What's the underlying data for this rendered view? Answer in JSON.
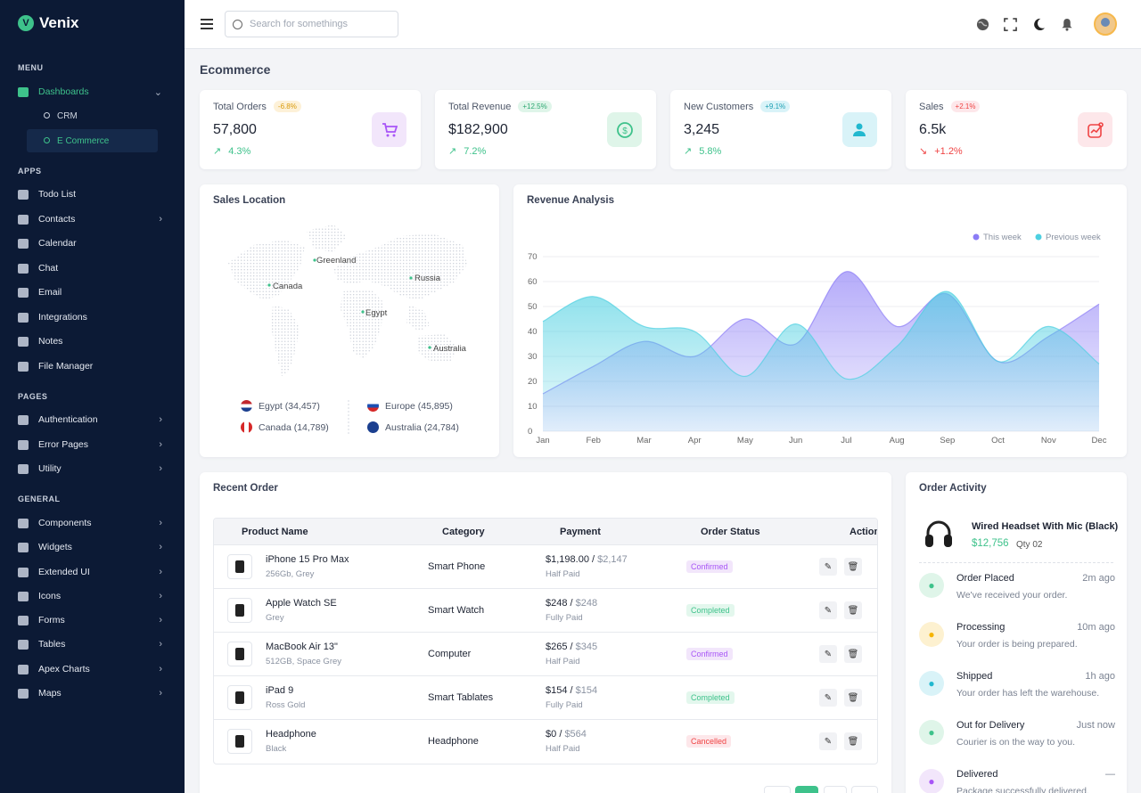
{
  "brand": {
    "name": "Venix",
    "logo_letter": "V",
    "accent": "#3ec28b",
    "sidebar_bg": "#0c1a35"
  },
  "sidebar": {
    "sections": [
      {
        "label": "MENU"
      },
      {
        "label": "APPS"
      },
      {
        "label": "PAGES"
      },
      {
        "label": "GENERAL"
      }
    ],
    "dashboards": {
      "label": "Dashboards",
      "icon": "grid-icon",
      "children": [
        {
          "label": "CRM"
        },
        {
          "label": "E Commerce"
        }
      ]
    },
    "apps": [
      {
        "label": "Todo List",
        "icon": "list-icon"
      },
      {
        "label": "Contacts",
        "icon": "contacts-icon"
      },
      {
        "label": "Calendar",
        "icon": "calendar-icon"
      },
      {
        "label": "Chat",
        "icon": "chat-icon"
      },
      {
        "label": "Email",
        "icon": "email-icon"
      },
      {
        "label": "Integrations",
        "icon": "integrations-icon"
      },
      {
        "label": "Notes",
        "icon": "notes-icon"
      },
      {
        "label": "File Manager",
        "icon": "file-icon"
      }
    ],
    "pages": [
      {
        "label": "Authentication",
        "icon": "lock-icon"
      },
      {
        "label": "Error Pages",
        "icon": "error-icon"
      },
      {
        "label": "Utility",
        "icon": "utility-icon"
      }
    ],
    "general": [
      {
        "label": "Components",
        "icon": "components-icon"
      },
      {
        "label": "Widgets",
        "icon": "widgets-icon"
      },
      {
        "label": "Extended UI",
        "icon": "extended-icon"
      },
      {
        "label": "Icons",
        "icon": "icons-icon"
      },
      {
        "label": "Forms",
        "icon": "forms-icon"
      },
      {
        "label": "Tables",
        "icon": "tables-icon"
      },
      {
        "label": "Apex Charts",
        "icon": "chart-icon"
      },
      {
        "label": "Maps",
        "icon": "map-icon"
      }
    ]
  },
  "search": {
    "placeholder": "Search for somethings"
  },
  "page_title": "Ecommerce",
  "stats": [
    {
      "label": "Total Orders",
      "badge": "-6.8%",
      "value": "57,800",
      "trend": "4.3%",
      "trend_dir": "up",
      "icon": "cart-icon",
      "color": "#a855f7",
      "bg": "#f2e6fb",
      "badge_bg": "#fdf1d8",
      "badge_color": "#d99a0b"
    },
    {
      "label": "Total Revenue",
      "badge": "+12.5%",
      "value": "$182,900",
      "trend": "7.2%",
      "trend_dir": "up",
      "icon": "dollar-icon",
      "color": "#3ec28b",
      "bg": "#dff5e9",
      "badge_bg": "#dff5e9",
      "badge_color": "#2ea872"
    },
    {
      "label": "New Customers",
      "badge": "+9.1%",
      "value": "3,245",
      "trend": "5.8%",
      "trend_dir": "up",
      "icon": "user-icon",
      "color": "#22b8cf",
      "bg": "#d9f3f8",
      "badge_bg": "#d9f3f8",
      "badge_color": "#1c9fb3"
    },
    {
      "label": "Sales",
      "badge": "+2.1%",
      "value": "6.5k",
      "trend": "+1.2%",
      "trend_dir": "down",
      "icon": "chart-box-icon",
      "color": "#ef4444",
      "bg": "#fde7ea",
      "badge_bg": "#fde7ea",
      "badge_color": "#ef4444"
    }
  ],
  "sales_location": {
    "title": "Sales Location",
    "markers": [
      {
        "label": "Greenland"
      },
      {
        "label": "Canada"
      },
      {
        "label": "Russia"
      },
      {
        "label": "Egypt"
      },
      {
        "label": "Australia"
      }
    ],
    "countries": [
      {
        "label": "Egypt (34,457)"
      },
      {
        "label": "Europe (45,895)"
      },
      {
        "label": "Canada (14,789)"
      },
      {
        "label": "Australia (24,784)"
      }
    ]
  },
  "chart_data": {
    "type": "area",
    "title": "Revenue Analysis",
    "categories": [
      "Jan",
      "Feb",
      "Mar",
      "Apr",
      "May",
      "Jun",
      "Jul",
      "Aug",
      "Sep",
      "Oct",
      "Nov",
      "Dec"
    ],
    "ylim": [
      0,
      70
    ],
    "yticks": [
      0,
      10,
      20,
      30,
      40,
      50,
      60,
      70
    ],
    "grid": true,
    "legend": "top-right",
    "series": [
      {
        "name": "This week",
        "color": "#8b7cf6",
        "values": [
          15,
          26,
          36,
          30,
          45,
          35,
          64,
          42,
          55,
          28,
          38,
          51
        ]
      },
      {
        "name": "Previous week",
        "color": "#4dd0e1",
        "values": [
          44,
          54,
          42,
          40,
          22,
          43,
          21,
          34,
          56,
          28,
          42,
          27
        ]
      }
    ]
  },
  "recent_order": {
    "title": "Recent Order",
    "headers": [
      "Product Name",
      "Category",
      "Payment",
      "Order Status",
      "Action"
    ],
    "rows": [
      {
        "name": "iPhone 15 Pro Max",
        "sub": "256Gb, Grey",
        "category": "Smart Phone",
        "paid": "$1,198.00",
        "total": "$2,147",
        "pay_status": "Half Paid",
        "status": "Confirmed",
        "status_type": "c"
      },
      {
        "name": "Apple Watch SE",
        "sub": "Grey",
        "category": "Smart Watch",
        "paid": "$248",
        "total": "$248",
        "pay_status": "Fully Paid",
        "status": "Completed",
        "status_type": "d"
      },
      {
        "name": "MacBook Air 13\"",
        "sub": "512GB, Space Grey",
        "category": "Computer",
        "paid": "$265",
        "total": "$345",
        "pay_status": "Half Paid",
        "status": "Confirmed",
        "status_type": "c"
      },
      {
        "name": "iPad 9",
        "sub": "Ross Gold",
        "category": "Smart Tablates",
        "paid": "$154",
        "total": "$154",
        "pay_status": "Fully Paid",
        "status": "Completed",
        "status_type": "d"
      },
      {
        "name": "Headphone",
        "sub": "Black",
        "category": "Headphone",
        "paid": "$0",
        "total": "$564",
        "pay_status": "Half Paid",
        "status": "Cancelled",
        "status_type": "x"
      }
    ],
    "sep": "/"
  },
  "order_activity": {
    "title": "Order Activity",
    "product": {
      "name": "Wired Headset With Mic (Black)",
      "price": "$12,756",
      "qty": "Qty 02"
    },
    "items": [
      {
        "title": "Order Placed",
        "time": "2m ago",
        "desc": "We've received your order.",
        "color": "#3ec28b",
        "bg": "#dff5e9",
        "icon": "cart-icon"
      },
      {
        "title": "Processing",
        "time": "10m ago",
        "desc": "Your order is being prepared.",
        "color": "#f5b400",
        "bg": "#fdf1d0",
        "icon": "gear-icon"
      },
      {
        "title": "Shipped",
        "time": "1h ago",
        "desc": "Your order has left the warehouse.",
        "color": "#22b8cf",
        "bg": "#d9f3f8",
        "icon": "truck-icon"
      },
      {
        "title": "Out for Delivery",
        "time": "Just now",
        "desc": "Courier is on the way to you.",
        "color": "#3ec28b",
        "bg": "#dff5e9",
        "icon": "bike-icon"
      },
      {
        "title": "Delivered",
        "time": "—",
        "desc": "Package successfully delivered.",
        "color": "#a855f7",
        "bg": "#f2e6fb",
        "icon": "check-icon"
      }
    ]
  }
}
